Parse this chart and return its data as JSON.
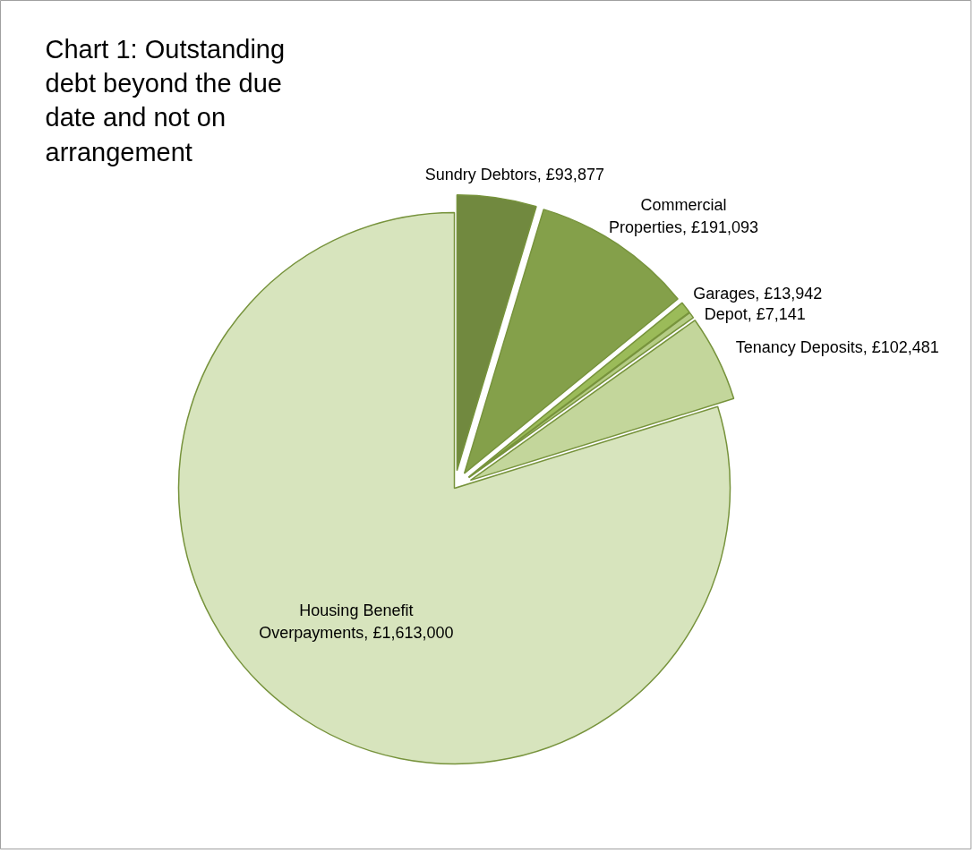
{
  "chart_data": {
    "type": "pie",
    "title": "Chart 1: Outstanding debt beyond the due date and not on arrangement",
    "categories": [
      "Sundry Debtors",
      "Commercial Properties",
      "Garages",
      "Depot",
      "Tenancy Deposits",
      "Housing Benefit Overpayments"
    ],
    "values": [
      93877,
      191093,
      13942,
      7141,
      102481,
      1613000
    ],
    "value_labels": [
      "£93,877",
      "£191,093",
      "£13,942",
      "£7,141",
      "£102,481",
      "£1,613,000"
    ],
    "colors": [
      "#71893f",
      "#84a04a",
      "#9bbb59",
      "#b5cc85",
      "#c3d69b",
      "#d7e4bd"
    ],
    "legend": false
  }
}
